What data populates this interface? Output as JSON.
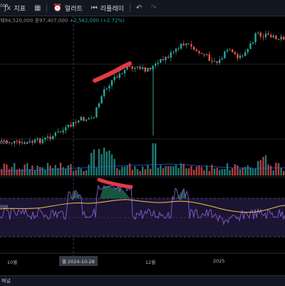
{
  "toolbar": {
    "indicators_label": "지표",
    "alerts_label": "얼러트",
    "replay_label": "리플레이",
    "undo_icon": "undo-icon",
    "redo_icon": "redo-icon"
  },
  "ohlc": {
    "partial_open": "재94,520,000",
    "partial_close": "종97,407,000",
    "change": "+2,582,000 (+2.72%)"
  },
  "y_axis_labels": {
    "price_a": "000",
    "price_b": "000",
    "osc": "000"
  },
  "x_axis": {
    "label_oct": "10월",
    "crosshair_date": "월 2024-10-28",
    "label_dec": "12월",
    "label_2025": "2025"
  },
  "footer": {
    "panel_label": "패널"
  },
  "colors": {
    "up": "#26a69a",
    "down": "#ef5350",
    "annotation": "#e53945",
    "rsi_line": "#7e57c2",
    "rsi_ma": "#f5c542",
    "background": "#000000"
  }
}
